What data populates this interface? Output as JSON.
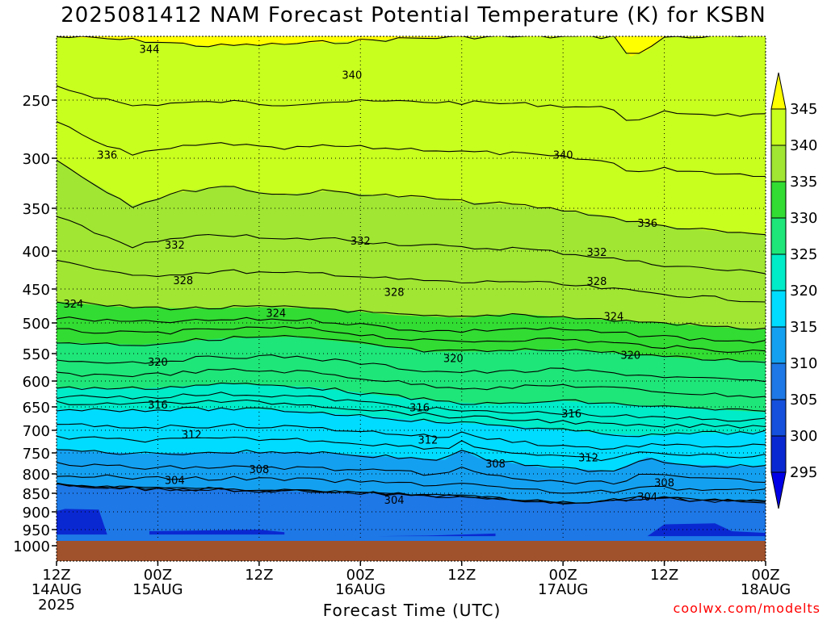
{
  "title": "2025081412 NAM Forecast Potential Temperature (K) for KSBN",
  "credit": "coolwx.com/modelts",
  "chart_data": {
    "type": "heatmap",
    "title": "2025081412 NAM Forecast Potential Temperature (K) for KSBN",
    "xlabel": "Forecast Time (UTC)",
    "ylabel": "",
    "x_ticks": [
      {
        "hour": 0,
        "label": "12Z",
        "sub": "14AUG",
        "sub2": "2025"
      },
      {
        "hour": 12,
        "label": "00Z",
        "sub": "15AUG"
      },
      {
        "hour": 24,
        "label": "12Z"
      },
      {
        "hour": 36,
        "label": "00Z",
        "sub": "16AUG"
      },
      {
        "hour": 48,
        "label": "12Z"
      },
      {
        "hour": 60,
        "label": "00Z",
        "sub": "17AUG"
      },
      {
        "hour": 72,
        "label": "12Z"
      },
      {
        "hour": 84,
        "label": "00Z",
        "sub": "18AUG"
      }
    ],
    "xlim": [
      0,
      84
    ],
    "y_scale": "log-pressure",
    "ylim_hpa": [
      1000,
      200
    ],
    "y_ticks": [
      250,
      300,
      350,
      400,
      450,
      500,
      550,
      600,
      650,
      700,
      750,
      800,
      850,
      900,
      950,
      1000
    ],
    "color_levels": [
      295,
      300,
      305,
      310,
      315,
      320,
      325,
      330,
      335,
      340,
      345
    ],
    "colorbar_labels": [
      "345",
      "340",
      "335",
      "330",
      "325",
      "320",
      "315",
      "310",
      "305",
      "300",
      "295"
    ],
    "colors": [
      "#0000e6",
      "#0a28d2",
      "#1450dc",
      "#1e78e6",
      "#14a0f0",
      "#00dcff",
      "#00ebc8",
      "#1ee678",
      "#32dc32",
      "#a0e632",
      "#c8ff1e",
      "#ffff00"
    ],
    "ground_color": "#a0522d",
    "contour_interval": 2,
    "contour_labels": [
      {
        "value": "344",
        "hour": 11,
        "hpa": 214
      },
      {
        "value": "340",
        "hour": 35,
        "hpa": 232
      },
      {
        "value": "340",
        "hour": 60,
        "hpa": 298
      },
      {
        "value": "336",
        "hour": 6,
        "hpa": 298
      },
      {
        "value": "336",
        "hour": 70,
        "hpa": 368
      },
      {
        "value": "332",
        "hour": 14,
        "hpa": 394
      },
      {
        "value": "332",
        "hour": 36,
        "hpa": 389
      },
      {
        "value": "332",
        "hour": 64,
        "hpa": 403
      },
      {
        "value": "328",
        "hour": 15,
        "hpa": 440
      },
      {
        "value": "328",
        "hour": 40,
        "hpa": 456
      },
      {
        "value": "328",
        "hour": 64,
        "hpa": 441
      },
      {
        "value": "324",
        "hour": 2,
        "hpa": 473
      },
      {
        "value": "324",
        "hour": 26,
        "hpa": 487
      },
      {
        "value": "324",
        "hour": 66,
        "hpa": 492
      },
      {
        "value": "320",
        "hour": 12,
        "hpa": 567
      },
      {
        "value": "320",
        "hour": 47,
        "hpa": 561
      },
      {
        "value": "320",
        "hour": 68,
        "hpa": 555
      },
      {
        "value": "316",
        "hour": 12,
        "hpa": 648
      },
      {
        "value": "316",
        "hour": 43,
        "hpa": 654
      },
      {
        "value": "316",
        "hour": 61,
        "hpa": 667
      },
      {
        "value": "312",
        "hour": 16,
        "hpa": 712
      },
      {
        "value": "312",
        "hour": 44,
        "hpa": 724
      },
      {
        "value": "312",
        "hour": 63,
        "hpa": 764
      },
      {
        "value": "308",
        "hour": 24,
        "hpa": 792
      },
      {
        "value": "308",
        "hour": 52,
        "hpa": 778
      },
      {
        "value": "308",
        "hour": 72,
        "hpa": 826
      },
      {
        "value": "304",
        "hour": 14,
        "hpa": 819
      },
      {
        "value": "304",
        "hour": 40,
        "hpa": 871
      },
      {
        "value": "304",
        "hour": 70,
        "hpa": 863
      }
    ],
    "band_boundaries_hpa": {
      "340": [
        {
          "hour": 0,
          "hpa": 205
        },
        {
          "hour": 9,
          "hpa": 207
        },
        {
          "hour": 18,
          "hpa": 211
        },
        {
          "hour": 26,
          "hpa": 210
        },
        {
          "hour": 34,
          "hpa": 208
        },
        {
          "hour": 42,
          "hpa": 206
        },
        {
          "hour": 50,
          "hpa": 205
        },
        {
          "hour": 58,
          "hpa": 205
        },
        {
          "hour": 66,
          "hpa": 205
        },
        {
          "hour": 68,
          "hpa": 218
        },
        {
          "hour": 70,
          "hpa": 214
        },
        {
          "hour": 72,
          "hpa": 205
        },
        {
          "hour": 84,
          "hpa": 205
        }
      ],
      "335": [
        {
          "hour": 0,
          "hpa": 302
        },
        {
          "hour": 4,
          "hpa": 322
        },
        {
          "hour": 9,
          "hpa": 347
        },
        {
          "hour": 14,
          "hpa": 334
        },
        {
          "hour": 20,
          "hpa": 326
        },
        {
          "hour": 26,
          "hpa": 336
        },
        {
          "hour": 32,
          "hpa": 332
        },
        {
          "hour": 38,
          "hpa": 336
        },
        {
          "hour": 44,
          "hpa": 339
        },
        {
          "hour": 48,
          "hpa": 343
        },
        {
          "hour": 54,
          "hpa": 346
        },
        {
          "hour": 60,
          "hpa": 352
        },
        {
          "hour": 64,
          "hpa": 357
        },
        {
          "hour": 70,
          "hpa": 368
        },
        {
          "hour": 76,
          "hpa": 374
        },
        {
          "hour": 80,
          "hpa": 378
        },
        {
          "hour": 84,
          "hpa": 380
        }
      ],
      "330": [
        {
          "hour": 0,
          "hpa": 468
        },
        {
          "hour": 8,
          "hpa": 476
        },
        {
          "hour": 16,
          "hpa": 478
        },
        {
          "hour": 24,
          "hpa": 476
        },
        {
          "hour": 32,
          "hpa": 478
        },
        {
          "hour": 40,
          "hpa": 488
        },
        {
          "hour": 48,
          "hpa": 492
        },
        {
          "hour": 54,
          "hpa": 486
        },
        {
          "hour": 60,
          "hpa": 491
        },
        {
          "hour": 66,
          "hpa": 496
        },
        {
          "hour": 72,
          "hpa": 500
        },
        {
          "hour": 78,
          "hpa": 506
        },
        {
          "hour": 84,
          "hpa": 510
        }
      ],
      "325": [
        {
          "hour": 0,
          "hpa": 531
        },
        {
          "hour": 10,
          "hpa": 535
        },
        {
          "hour": 20,
          "hpa": 524
        },
        {
          "hour": 28,
          "hpa": 522
        },
        {
          "hour": 36,
          "hpa": 533
        },
        {
          "hour": 44,
          "hpa": 547
        },
        {
          "hour": 52,
          "hpa": 546
        },
        {
          "hour": 60,
          "hpa": 542
        },
        {
          "hour": 68,
          "hpa": 551
        },
        {
          "hour": 76,
          "hpa": 560
        },
        {
          "hour": 84,
          "hpa": 563
        }
      ],
      "320": [
        {
          "hour": 0,
          "hpa": 613
        },
        {
          "hour": 10,
          "hpa": 614
        },
        {
          "hour": 20,
          "hpa": 605
        },
        {
          "hour": 30,
          "hpa": 611
        },
        {
          "hour": 38,
          "hpa": 626
        },
        {
          "hour": 46,
          "hpa": 640
        },
        {
          "hour": 52,
          "hpa": 645
        },
        {
          "hour": 60,
          "hpa": 638
        },
        {
          "hour": 68,
          "hpa": 646
        },
        {
          "hour": 76,
          "hpa": 654
        },
        {
          "hour": 84,
          "hpa": 661
        }
      ],
      "315": [
        {
          "hour": 0,
          "hpa": 655
        },
        {
          "hour": 10,
          "hpa": 656
        },
        {
          "hour": 20,
          "hpa": 654
        },
        {
          "hour": 28,
          "hpa": 658
        },
        {
          "hour": 36,
          "hpa": 668
        },
        {
          "hour": 44,
          "hpa": 680
        },
        {
          "hour": 52,
          "hpa": 688
        },
        {
          "hour": 58,
          "hpa": 697
        },
        {
          "hour": 64,
          "hpa": 706
        },
        {
          "hour": 70,
          "hpa": 712
        },
        {
          "hour": 76,
          "hpa": 706
        },
        {
          "hour": 80,
          "hpa": 706
        },
        {
          "hour": 84,
          "hpa": 703
        }
      ],
      "310": [
        {
          "hour": 0,
          "hpa": 743
        },
        {
          "hour": 10,
          "hpa": 752
        },
        {
          "hour": 20,
          "hpa": 748
        },
        {
          "hour": 30,
          "hpa": 748
        },
        {
          "hour": 40,
          "hpa": 760
        },
        {
          "hour": 46,
          "hpa": 766
        },
        {
          "hour": 48,
          "hpa": 742
        },
        {
          "hour": 50,
          "hpa": 762
        },
        {
          "hour": 58,
          "hpa": 786
        },
        {
          "hour": 66,
          "hpa": 792
        },
        {
          "hour": 70,
          "hpa": 760
        },
        {
          "hour": 74,
          "hpa": 778
        },
        {
          "hour": 80,
          "hpa": 780
        },
        {
          "hour": 84,
          "hpa": 782
        }
      ],
      "305": [
        {
          "hour": 0,
          "hpa": 828
        },
        {
          "hour": 10,
          "hpa": 838
        },
        {
          "hour": 20,
          "hpa": 840
        },
        {
          "hour": 30,
          "hpa": 846
        },
        {
          "hour": 40,
          "hpa": 852
        },
        {
          "hour": 48,
          "hpa": 858
        },
        {
          "hour": 56,
          "hpa": 870
        },
        {
          "hour": 62,
          "hpa": 878
        },
        {
          "hour": 70,
          "hpa": 860
        },
        {
          "hour": 76,
          "hpa": 868
        },
        {
          "hour": 84,
          "hpa": 872
        }
      ],
      "300": [
        {
          "hour": 0,
          "hpa": 898
        },
        {
          "hour": 1,
          "hpa": 892
        },
        {
          "hour": 5,
          "hpa": 894
        },
        {
          "hour": 6,
          "hpa": 965
        },
        {
          "hour": 0,
          "hpa": 965
        }
      ]
    }
  }
}
